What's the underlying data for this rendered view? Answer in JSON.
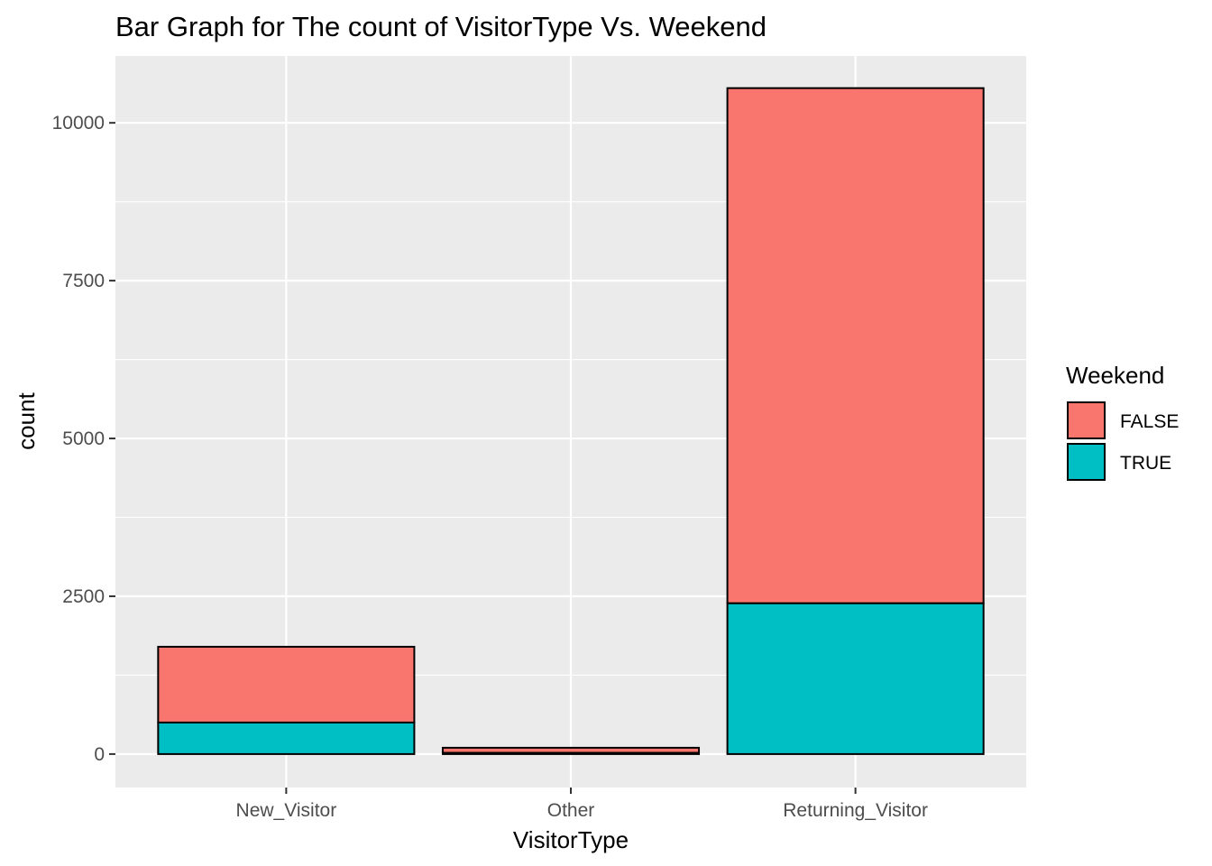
{
  "chart_data": {
    "type": "bar",
    "stacked": true,
    "title": "Bar Graph for The count of VisitorType Vs. Weekend",
    "xlabel": "VisitorType",
    "ylabel": "count",
    "categories": [
      "New_Visitor",
      "Other",
      "Returning_Visitor"
    ],
    "series": [
      {
        "name": "TRUE",
        "values": [
          500,
          20,
          2390
        ],
        "color": "#00BFC4"
      },
      {
        "name": "FALSE",
        "values": [
          1200,
          80,
          8160
        ],
        "color": "#F8766D"
      }
    ],
    "ylim": [
      -530,
      11060
    ],
    "yticks": [
      0,
      2500,
      5000,
      7500,
      10000
    ],
    "ytick_labels": [
      "0",
      "2500",
      "5000",
      "7500",
      "10000"
    ],
    "grid": true,
    "panel_background": "#EBEBEB",
    "legend": {
      "title": "Weekend",
      "position": "right",
      "entries": [
        {
          "label": "FALSE",
          "color": "#F8766D"
        },
        {
          "label": "TRUE",
          "color": "#00BFC4"
        }
      ]
    }
  }
}
